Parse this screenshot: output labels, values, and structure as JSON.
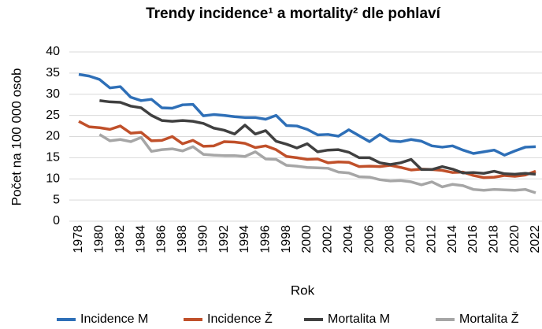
{
  "chart_data": {
    "type": "line",
    "title": "Trendy incidence¹ a mortality² dle pohlaví",
    "x_label": "Rok",
    "y_label": "Počet na 100 000 osob",
    "x": [
      1978,
      1979,
      1980,
      1981,
      1982,
      1983,
      1984,
      1985,
      1986,
      1987,
      1988,
      1989,
      1990,
      1991,
      1992,
      1993,
      1994,
      1995,
      1996,
      1997,
      1998,
      1999,
      2000,
      2001,
      2002,
      2003,
      2004,
      2005,
      2006,
      2007,
      2008,
      2009,
      2010,
      2011,
      2012,
      2013,
      2014,
      2015,
      2016,
      2017,
      2018,
      2019,
      2020,
      2021,
      2022
    ],
    "xlim": [
      1978,
      2022
    ],
    "xticks": [
      1978,
      1980,
      1982,
      1984,
      1986,
      1988,
      1990,
      1992,
      1994,
      1996,
      1998,
      2000,
      2002,
      2004,
      2006,
      2008,
      2010,
      2012,
      2014,
      2016,
      2018,
      2020,
      2022
    ],
    "ylim": [
      0,
      40
    ],
    "yticks": [
      0,
      5,
      10,
      15,
      20,
      25,
      30,
      35,
      40
    ],
    "grid": true,
    "legend": "bottom",
    "series": [
      {
        "name": "Incidence M",
        "color": "#2e6fb7",
        "values": [
          34.7,
          34.3,
          33.5,
          31.5,
          31.8,
          29.3,
          28.5,
          28.8,
          26.8,
          26.7,
          27.5,
          27.6,
          24.9,
          25.2,
          25.0,
          24.7,
          24.5,
          24.5,
          24.1,
          25.0,
          22.6,
          22.5,
          21.7,
          20.4,
          20.5,
          20.1,
          21.6,
          20.2,
          18.8,
          20.5,
          19.0,
          18.8,
          19.3,
          18.9,
          17.8,
          17.5,
          17.8,
          16.8,
          16.0,
          16.4,
          16.8,
          15.6,
          16.6,
          17.5,
          17.6
        ]
      },
      {
        "name": "Incidence Ž",
        "color": "#c0502a",
        "values": [
          23.6,
          22.3,
          22.1,
          21.7,
          22.5,
          20.8,
          21.0,
          19.0,
          19.1,
          20.0,
          18.3,
          19.1,
          17.7,
          17.8,
          18.8,
          18.7,
          18.4,
          17.4,
          17.8,
          16.9,
          15.3,
          15.0,
          14.6,
          14.7,
          13.8,
          14.0,
          13.9,
          12.9,
          13.0,
          12.9,
          13.2,
          12.7,
          12.1,
          12.3,
          12.2,
          12.0,
          11.5,
          11.6,
          10.8,
          10.3,
          10.4,
          10.8,
          10.6,
          10.9,
          11.8
        ]
      },
      {
        "name": "Mortalita M",
        "color": "#404040",
        "values": [
          null,
          null,
          28.5,
          28.2,
          28.1,
          27.2,
          26.8,
          25.0,
          23.8,
          23.6,
          23.8,
          23.6,
          23.1,
          22.0,
          21.5,
          20.6,
          22.7,
          20.6,
          21.4,
          18.9,
          18.2,
          17.3,
          18.3,
          16.4,
          16.8,
          16.9,
          16.3,
          15.0,
          15.0,
          13.8,
          13.4,
          13.8,
          14.6,
          12.2,
          12.2,
          12.9,
          12.3,
          11.4,
          11.5,
          11.3,
          11.8,
          11.2,
          11.1,
          11.3,
          11.1
        ]
      },
      {
        "name": "Mortalita Ž",
        "color": "#a6a6a6",
        "values": [
          null,
          null,
          20.5,
          19.0,
          19.3,
          18.8,
          19.8,
          16.5,
          16.9,
          17.1,
          16.6,
          17.6,
          15.8,
          15.6,
          15.5,
          15.5,
          15.3,
          16.4,
          14.7,
          14.6,
          13.2,
          13.0,
          12.7,
          12.6,
          12.5,
          11.6,
          11.4,
          10.5,
          10.4,
          9.8,
          9.5,
          9.6,
          9.3,
          8.6,
          9.3,
          8.1,
          8.7,
          8.4,
          7.5,
          7.3,
          7.5,
          7.4,
          7.3,
          7.5,
          6.7
        ]
      }
    ]
  }
}
